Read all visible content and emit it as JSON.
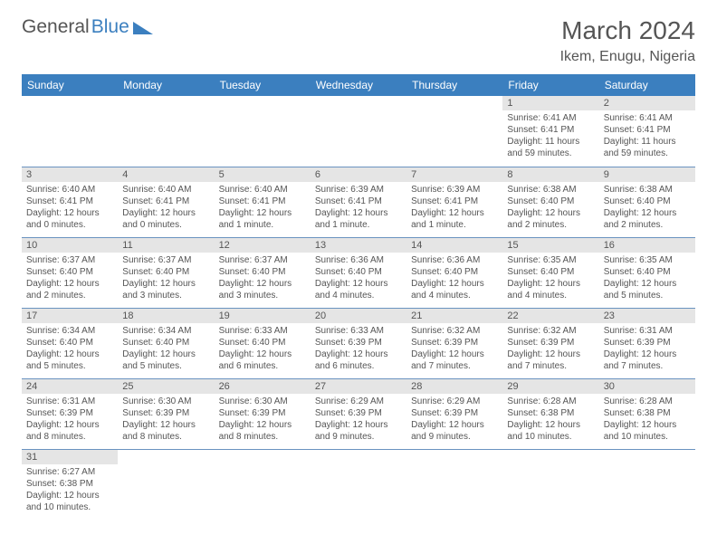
{
  "logo": {
    "text1": "General",
    "text2": "Blue"
  },
  "title": "March 2024",
  "location": "Ikem, Enugu, Nigeria",
  "colors": {
    "header_bg": "#3b7fbf",
    "header_fg": "#ffffff",
    "daynum_bg": "#e5e5e5",
    "row_border": "#6a93c0",
    "text": "#555555",
    "logo_blue": "#3b7fbf"
  },
  "weekdays": [
    "Sunday",
    "Monday",
    "Tuesday",
    "Wednesday",
    "Thursday",
    "Friday",
    "Saturday"
  ],
  "weeks": [
    [
      {
        "n": "",
        "sr": "",
        "ss": "",
        "dl": ""
      },
      {
        "n": "",
        "sr": "",
        "ss": "",
        "dl": ""
      },
      {
        "n": "",
        "sr": "",
        "ss": "",
        "dl": ""
      },
      {
        "n": "",
        "sr": "",
        "ss": "",
        "dl": ""
      },
      {
        "n": "",
        "sr": "",
        "ss": "",
        "dl": ""
      },
      {
        "n": "1",
        "sr": "Sunrise: 6:41 AM",
        "ss": "Sunset: 6:41 PM",
        "dl": "Daylight: 11 hours and 59 minutes."
      },
      {
        "n": "2",
        "sr": "Sunrise: 6:41 AM",
        "ss": "Sunset: 6:41 PM",
        "dl": "Daylight: 11 hours and 59 minutes."
      }
    ],
    [
      {
        "n": "3",
        "sr": "Sunrise: 6:40 AM",
        "ss": "Sunset: 6:41 PM",
        "dl": "Daylight: 12 hours and 0 minutes."
      },
      {
        "n": "4",
        "sr": "Sunrise: 6:40 AM",
        "ss": "Sunset: 6:41 PM",
        "dl": "Daylight: 12 hours and 0 minutes."
      },
      {
        "n": "5",
        "sr": "Sunrise: 6:40 AM",
        "ss": "Sunset: 6:41 PM",
        "dl": "Daylight: 12 hours and 1 minute."
      },
      {
        "n": "6",
        "sr": "Sunrise: 6:39 AM",
        "ss": "Sunset: 6:41 PM",
        "dl": "Daylight: 12 hours and 1 minute."
      },
      {
        "n": "7",
        "sr": "Sunrise: 6:39 AM",
        "ss": "Sunset: 6:41 PM",
        "dl": "Daylight: 12 hours and 1 minute."
      },
      {
        "n": "8",
        "sr": "Sunrise: 6:38 AM",
        "ss": "Sunset: 6:40 PM",
        "dl": "Daylight: 12 hours and 2 minutes."
      },
      {
        "n": "9",
        "sr": "Sunrise: 6:38 AM",
        "ss": "Sunset: 6:40 PM",
        "dl": "Daylight: 12 hours and 2 minutes."
      }
    ],
    [
      {
        "n": "10",
        "sr": "Sunrise: 6:37 AM",
        "ss": "Sunset: 6:40 PM",
        "dl": "Daylight: 12 hours and 2 minutes."
      },
      {
        "n": "11",
        "sr": "Sunrise: 6:37 AM",
        "ss": "Sunset: 6:40 PM",
        "dl": "Daylight: 12 hours and 3 minutes."
      },
      {
        "n": "12",
        "sr": "Sunrise: 6:37 AM",
        "ss": "Sunset: 6:40 PM",
        "dl": "Daylight: 12 hours and 3 minutes."
      },
      {
        "n": "13",
        "sr": "Sunrise: 6:36 AM",
        "ss": "Sunset: 6:40 PM",
        "dl": "Daylight: 12 hours and 4 minutes."
      },
      {
        "n": "14",
        "sr": "Sunrise: 6:36 AM",
        "ss": "Sunset: 6:40 PM",
        "dl": "Daylight: 12 hours and 4 minutes."
      },
      {
        "n": "15",
        "sr": "Sunrise: 6:35 AM",
        "ss": "Sunset: 6:40 PM",
        "dl": "Daylight: 12 hours and 4 minutes."
      },
      {
        "n": "16",
        "sr": "Sunrise: 6:35 AM",
        "ss": "Sunset: 6:40 PM",
        "dl": "Daylight: 12 hours and 5 minutes."
      }
    ],
    [
      {
        "n": "17",
        "sr": "Sunrise: 6:34 AM",
        "ss": "Sunset: 6:40 PM",
        "dl": "Daylight: 12 hours and 5 minutes."
      },
      {
        "n": "18",
        "sr": "Sunrise: 6:34 AM",
        "ss": "Sunset: 6:40 PM",
        "dl": "Daylight: 12 hours and 5 minutes."
      },
      {
        "n": "19",
        "sr": "Sunrise: 6:33 AM",
        "ss": "Sunset: 6:40 PM",
        "dl": "Daylight: 12 hours and 6 minutes."
      },
      {
        "n": "20",
        "sr": "Sunrise: 6:33 AM",
        "ss": "Sunset: 6:39 PM",
        "dl": "Daylight: 12 hours and 6 minutes."
      },
      {
        "n": "21",
        "sr": "Sunrise: 6:32 AM",
        "ss": "Sunset: 6:39 PM",
        "dl": "Daylight: 12 hours and 7 minutes."
      },
      {
        "n": "22",
        "sr": "Sunrise: 6:32 AM",
        "ss": "Sunset: 6:39 PM",
        "dl": "Daylight: 12 hours and 7 minutes."
      },
      {
        "n": "23",
        "sr": "Sunrise: 6:31 AM",
        "ss": "Sunset: 6:39 PM",
        "dl": "Daylight: 12 hours and 7 minutes."
      }
    ],
    [
      {
        "n": "24",
        "sr": "Sunrise: 6:31 AM",
        "ss": "Sunset: 6:39 PM",
        "dl": "Daylight: 12 hours and 8 minutes."
      },
      {
        "n": "25",
        "sr": "Sunrise: 6:30 AM",
        "ss": "Sunset: 6:39 PM",
        "dl": "Daylight: 12 hours and 8 minutes."
      },
      {
        "n": "26",
        "sr": "Sunrise: 6:30 AM",
        "ss": "Sunset: 6:39 PM",
        "dl": "Daylight: 12 hours and 8 minutes."
      },
      {
        "n": "27",
        "sr": "Sunrise: 6:29 AM",
        "ss": "Sunset: 6:39 PM",
        "dl": "Daylight: 12 hours and 9 minutes."
      },
      {
        "n": "28",
        "sr": "Sunrise: 6:29 AM",
        "ss": "Sunset: 6:39 PM",
        "dl": "Daylight: 12 hours and 9 minutes."
      },
      {
        "n": "29",
        "sr": "Sunrise: 6:28 AM",
        "ss": "Sunset: 6:38 PM",
        "dl": "Daylight: 12 hours and 10 minutes."
      },
      {
        "n": "30",
        "sr": "Sunrise: 6:28 AM",
        "ss": "Sunset: 6:38 PM",
        "dl": "Daylight: 12 hours and 10 minutes."
      }
    ],
    [
      {
        "n": "31",
        "sr": "Sunrise: 6:27 AM",
        "ss": "Sunset: 6:38 PM",
        "dl": "Daylight: 12 hours and 10 minutes."
      },
      {
        "n": "",
        "sr": "",
        "ss": "",
        "dl": ""
      },
      {
        "n": "",
        "sr": "",
        "ss": "",
        "dl": ""
      },
      {
        "n": "",
        "sr": "",
        "ss": "",
        "dl": ""
      },
      {
        "n": "",
        "sr": "",
        "ss": "",
        "dl": ""
      },
      {
        "n": "",
        "sr": "",
        "ss": "",
        "dl": ""
      },
      {
        "n": "",
        "sr": "",
        "ss": "",
        "dl": ""
      }
    ]
  ]
}
